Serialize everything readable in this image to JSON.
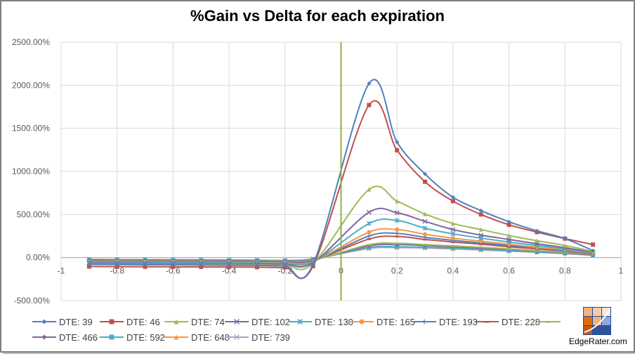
{
  "title": "%Gain vs Delta for each expiration",
  "logo_text": "EdgeRater.com",
  "chart_data": {
    "type": "line",
    "title": "%Gain vs Delta for each expiration",
    "xlabel": "",
    "ylabel": "",
    "xlim": [
      -1,
      1
    ],
    "ylim": [
      -500,
      2500
    ],
    "x_ticks": [
      "-1",
      "-0.8",
      "-0.6",
      "-0.4",
      "-0.2",
      "0",
      "0.2",
      "0.4",
      "0.6",
      "0.8",
      "1"
    ],
    "y_ticks": [
      "-500.00%",
      "0.00%",
      "500.00%",
      "1000.00%",
      "1500.00%",
      "2000.00%",
      "2500.00%"
    ],
    "grid": true,
    "legend": "bottom",
    "vertical_line_x": 0,
    "series": [
      {
        "name": "DTE: 39",
        "color": "#4f81bd",
        "marker": "diamond",
        "x": [
          -0.9,
          -0.8,
          -0.7,
          -0.6,
          -0.5,
          -0.4,
          -0.3,
          -0.2,
          -0.1,
          0.1,
          0.2,
          0.3,
          0.4,
          0.5,
          0.6,
          0.7,
          0.8,
          0.9
        ],
        "y": [
          -80,
          -82,
          -84,
          -85,
          -87,
          -89,
          -91,
          -95,
          -80,
          2020,
          1340,
          970,
          700,
          545,
          415,
          310,
          220,
          80
        ]
      },
      {
        "name": "DTE: 46",
        "color": "#c0504d",
        "marker": "square",
        "x": [
          -0.9,
          -0.8,
          -0.7,
          -0.6,
          -0.5,
          -0.4,
          -0.3,
          -0.2,
          -0.1,
          0.1,
          0.2,
          0.3,
          0.4,
          0.5,
          0.6,
          0.7,
          0.8,
          0.9
        ],
        "y": [
          -105,
          -106,
          -107,
          -108,
          -109,
          -110,
          -112,
          -115,
          -100,
          1770,
          1245,
          880,
          655,
          500,
          380,
          295,
          220,
          150
        ]
      },
      {
        "name": "DTE: 74",
        "color": "#9bbb59",
        "marker": "triangle",
        "x": [
          -0.9,
          -0.8,
          -0.7,
          -0.6,
          -0.5,
          -0.4,
          -0.3,
          -0.2,
          -0.1,
          0.1,
          0.2,
          0.3,
          0.4,
          0.5,
          0.6,
          0.7,
          0.8,
          0.9
        ],
        "y": [
          -75,
          -77,
          -78,
          -79,
          -80,
          -82,
          -84,
          -88,
          -70,
          790,
          655,
          505,
          395,
          325,
          255,
          195,
          140,
          70
        ]
      },
      {
        "name": "DTE: 102",
        "color": "#8064a2",
        "marker": "x",
        "x": [
          -0.9,
          -0.8,
          -0.7,
          -0.6,
          -0.5,
          -0.4,
          -0.3,
          -0.2,
          -0.1,
          0.1,
          0.2,
          0.3,
          0.4,
          0.5,
          0.6,
          0.7,
          0.8,
          0.9
        ],
        "y": [
          -65,
          -67,
          -68,
          -69,
          -70,
          -72,
          -74,
          -78,
          -60,
          525,
          520,
          420,
          325,
          260,
          210,
          160,
          115,
          60
        ]
      },
      {
        "name": "DTE: 130",
        "color": "#4bacc6",
        "marker": "star",
        "x": [
          -0.9,
          -0.8,
          -0.7,
          -0.6,
          -0.5,
          -0.4,
          -0.3,
          -0.2,
          -0.1,
          0.1,
          0.2,
          0.3,
          0.4,
          0.5,
          0.6,
          0.7,
          0.8,
          0.9
        ],
        "y": [
          -55,
          -57,
          -58,
          -59,
          -60,
          -62,
          -64,
          -68,
          -50,
          395,
          430,
          340,
          275,
          225,
          180,
          140,
          100,
          55
        ]
      },
      {
        "name": "DTE: 165",
        "color": "#f79646",
        "marker": "circle",
        "x": [
          -0.9,
          -0.8,
          -0.7,
          -0.6,
          -0.5,
          -0.4,
          -0.3,
          -0.2,
          -0.1,
          0.1,
          0.2,
          0.3,
          0.4,
          0.5,
          0.6,
          0.7,
          0.8,
          0.9
        ],
        "y": [
          -50,
          -52,
          -53,
          -54,
          -55,
          -57,
          -59,
          -62,
          -45,
          295,
          325,
          270,
          225,
          190,
          155,
          120,
          90,
          50
        ]
      },
      {
        "name": "DTE: 193",
        "color": "#4f81bd",
        "marker": "plus",
        "x": [
          -0.9,
          -0.8,
          -0.7,
          -0.6,
          -0.5,
          -0.4,
          -0.3,
          -0.2,
          -0.1,
          0.1,
          0.2,
          0.3,
          0.4,
          0.5,
          0.6,
          0.7,
          0.8,
          0.9
        ],
        "y": [
          -45,
          -47,
          -48,
          -49,
          -50,
          -52,
          -54,
          -57,
          -40,
          250,
          280,
          235,
          200,
          170,
          140,
          110,
          80,
          45
        ]
      },
      {
        "name": "DTE: 228",
        "color": "#c0504d",
        "marker": "dash",
        "x": [
          -0.9,
          -0.8,
          -0.7,
          -0.6,
          -0.5,
          -0.4,
          -0.3,
          -0.2,
          -0.1,
          0.1,
          0.2,
          0.3,
          0.4,
          0.5,
          0.6,
          0.7,
          0.8,
          0.9
        ],
        "y": [
          -40,
          -42,
          -43,
          -44,
          -45,
          -47,
          -49,
          -52,
          -35,
          215,
          245,
          210,
          180,
          155,
          125,
          100,
          75,
          40
        ]
      },
      {
        "name": "",
        "color": "#9bbb59",
        "marker": "dash",
        "x": [
          -0.9,
          -0.8,
          -0.7,
          -0.6,
          -0.5,
          -0.4,
          -0.3,
          -0.2,
          -0.1,
          0.1,
          0.2,
          0.3,
          0.4,
          0.5,
          0.6,
          0.7,
          0.8,
          0.9
        ],
        "y": [
          -35,
          -37,
          -38,
          -39,
          -40,
          -42,
          -44,
          -47,
          -30,
          150,
          165,
          150,
          135,
          120,
          100,
          80,
          60,
          35
        ]
      },
      {
        "name": "DTE: 466",
        "color": "#8064a2",
        "marker": "diamond",
        "x": [
          -0.9,
          -0.8,
          -0.7,
          -0.6,
          -0.5,
          -0.4,
          -0.3,
          -0.2,
          -0.1,
          0.1,
          0.2,
          0.3,
          0.4,
          0.5,
          0.6,
          0.7,
          0.8,
          0.9
        ],
        "y": [
          -30,
          -32,
          -33,
          -34,
          -35,
          -37,
          -39,
          -42,
          -25,
          135,
          150,
          140,
          125,
          110,
          95,
          75,
          55,
          30
        ]
      },
      {
        "name": "DTE: 592",
        "color": "#4bacc6",
        "marker": "square",
        "x": [
          -0.9,
          -0.8,
          -0.7,
          -0.6,
          -0.5,
          -0.4,
          -0.3,
          -0.2,
          -0.1,
          0.1,
          0.2,
          0.3,
          0.4,
          0.5,
          0.6,
          0.7,
          0.8,
          0.9
        ],
        "y": [
          -25,
          -27,
          -28,
          -29,
          -30,
          -32,
          -34,
          -37,
          -20,
          115,
          125,
          120,
          110,
          95,
          80,
          65,
          50,
          30
        ]
      },
      {
        "name": "DTE: 648",
        "color": "#f79646",
        "marker": "triangle",
        "x": [
          -0.9,
          -0.8,
          -0.7,
          -0.6,
          -0.5,
          -0.4,
          -0.3,
          -0.2,
          -0.1,
          0.1,
          0.2,
          0.3,
          0.4,
          0.5,
          0.6,
          0.7,
          0.8,
          0.9
        ],
        "y": [
          -22,
          -24,
          -25,
          -26,
          -27,
          -29,
          -31,
          -34,
          -18,
          110,
          120,
          115,
          105,
          92,
          78,
          62,
          48,
          28
        ]
      },
      {
        "name": "DTE: 739",
        "color": "#a5a5d2",
        "marker": "x",
        "x": [
          -0.9,
          -0.8,
          -0.7,
          -0.6,
          -0.5,
          -0.4,
          -0.3,
          -0.2,
          -0.1,
          0.1,
          0.2,
          0.3,
          0.4,
          0.5,
          0.6,
          0.7,
          0.8,
          0.9
        ],
        "y": [
          -20,
          -22,
          -23,
          -24,
          -25,
          -27,
          -29,
          -32,
          -15,
          105,
          115,
          110,
          100,
          88,
          75,
          60,
          45,
          25
        ]
      }
    ]
  }
}
